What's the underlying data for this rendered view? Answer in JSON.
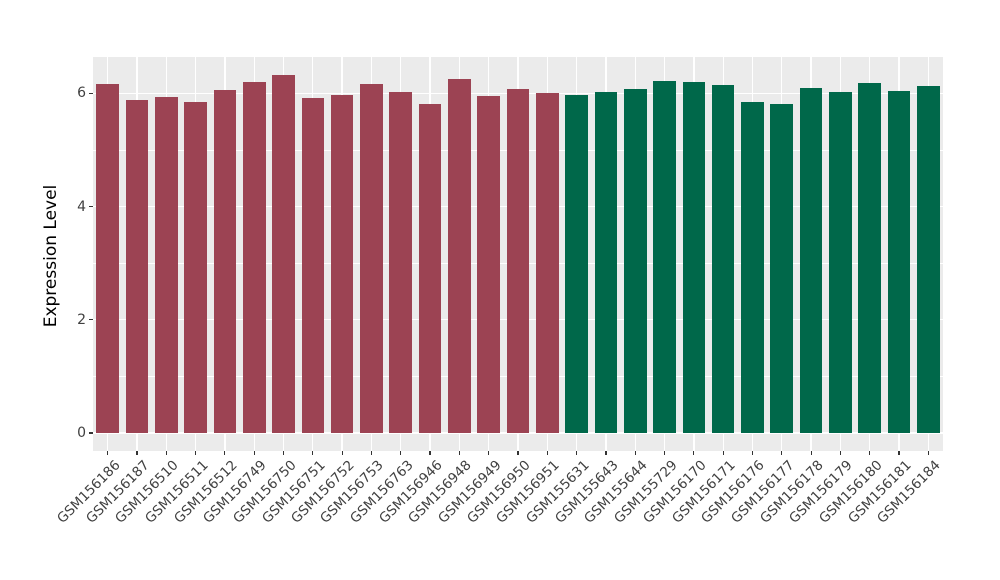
{
  "chart_data": {
    "type": "bar",
    "title": "",
    "xlabel": "",
    "ylabel": "Expression Level",
    "ylim": [
      0,
      6.64
    ],
    "yticks": [
      0,
      2,
      4,
      6
    ],
    "yminorticks": [
      1,
      3,
      5
    ],
    "grid": "on",
    "legend_position": "none",
    "panel_background": "#EBEBEB",
    "gridline_color": "#FFFFFF",
    "group_colors": {
      "group1": "#9C4353",
      "group2": "#00684A"
    },
    "categories": [
      "GSM156186",
      "GSM156187",
      "GSM156510",
      "GSM156511",
      "GSM156512",
      "GSM156749",
      "GSM156750",
      "GSM156751",
      "GSM156752",
      "GSM156753",
      "GSM156763",
      "GSM156946",
      "GSM156948",
      "GSM156949",
      "GSM156950",
      "GSM156951",
      "GSM155631",
      "GSM155643",
      "GSM155644",
      "GSM155729",
      "GSM156170",
      "GSM156171",
      "GSM156176",
      "GSM156177",
      "GSM156178",
      "GSM156179",
      "GSM156180",
      "GSM156181",
      "GSM156184"
    ],
    "values": [
      6.16,
      5.89,
      5.93,
      5.84,
      6.06,
      6.21,
      6.32,
      5.92,
      5.98,
      6.16,
      6.02,
      5.82,
      6.26,
      5.95,
      6.07,
      6.01,
      5.98,
      6.03,
      6.08,
      6.22,
      6.2,
      6.15,
      5.85,
      5.82,
      6.09,
      6.03,
      6.18,
      6.04,
      6.13
    ],
    "groups": [
      "group1",
      "group1",
      "group1",
      "group1",
      "group1",
      "group1",
      "group1",
      "group1",
      "group1",
      "group1",
      "group1",
      "group1",
      "group1",
      "group1",
      "group1",
      "group1",
      "group2",
      "group2",
      "group2",
      "group2",
      "group2",
      "group2",
      "group2",
      "group2",
      "group2",
      "group2",
      "group2",
      "group2",
      "group2"
    ]
  }
}
